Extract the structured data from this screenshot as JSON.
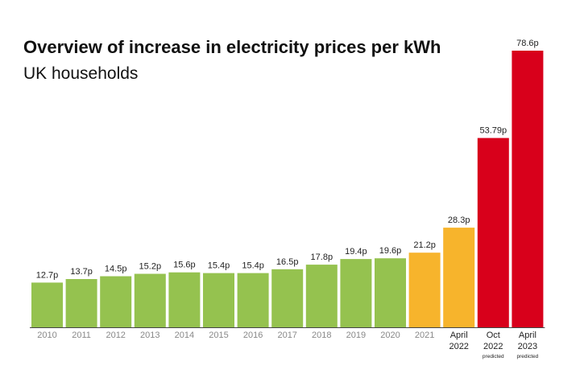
{
  "chart_data": {
    "type": "bar",
    "title": "Overview of increase in electricity prices per kWh",
    "subtitle": "UK households",
    "categories": [
      "2010",
      "2011",
      "2012",
      "2013",
      "2014",
      "2015",
      "2016",
      "2017",
      "2018",
      "2019",
      "2020",
      "2021",
      "April 2022",
      "Oct 2022",
      "April 2023"
    ],
    "values": [
      12.7,
      13.7,
      14.5,
      15.2,
      15.6,
      15.4,
      15.4,
      16.5,
      17.8,
      19.4,
      19.6,
      21.2,
      28.3,
      53.79,
      78.6
    ],
    "value_labels": [
      "12.7p",
      "13.7p",
      "14.5p",
      "15.2p",
      "15.6p",
      "15.4p",
      "15.4p",
      "16.5p",
      "17.8p",
      "19.4p",
      "19.6p",
      "21.2p",
      "28.3p",
      "53.79p",
      "78.6p"
    ],
    "tick_labels": [
      {
        "lines": [
          "2010"
        ],
        "note": ""
      },
      {
        "lines": [
          "2011"
        ],
        "note": ""
      },
      {
        "lines": [
          "2012"
        ],
        "note": ""
      },
      {
        "lines": [
          "2013"
        ],
        "note": ""
      },
      {
        "lines": [
          "2014"
        ],
        "note": ""
      },
      {
        "lines": [
          "2015"
        ],
        "note": ""
      },
      {
        "lines": [
          "2016"
        ],
        "note": ""
      },
      {
        "lines": [
          "2017"
        ],
        "note": ""
      },
      {
        "lines": [
          "2018"
        ],
        "note": ""
      },
      {
        "lines": [
          "2019"
        ],
        "note": ""
      },
      {
        "lines": [
          "2020"
        ],
        "note": ""
      },
      {
        "lines": [
          "2021"
        ],
        "note": ""
      },
      {
        "lines": [
          "April",
          "2022"
        ],
        "note": ""
      },
      {
        "lines": [
          "Oct",
          "2022"
        ],
        "note": "predicted"
      },
      {
        "lines": [
          "April",
          "2023"
        ],
        "note": "predicted"
      }
    ],
    "bar_color_groups": [
      "green",
      "green",
      "green",
      "green",
      "green",
      "green",
      "green",
      "green",
      "green",
      "green",
      "green",
      "amber",
      "amber",
      "red",
      "red"
    ],
    "colors": {
      "green": "#95c24f",
      "amber": "#f7b42c",
      "red": "#d8001b",
      "axis": "#444444",
      "label": "#222222",
      "past_tick": "#888888",
      "recent_tick": "#222222"
    },
    "ylim": [
      0,
      78.6
    ],
    "grid": false,
    "legend": "none",
    "xlabel": "",
    "ylabel": ""
  }
}
